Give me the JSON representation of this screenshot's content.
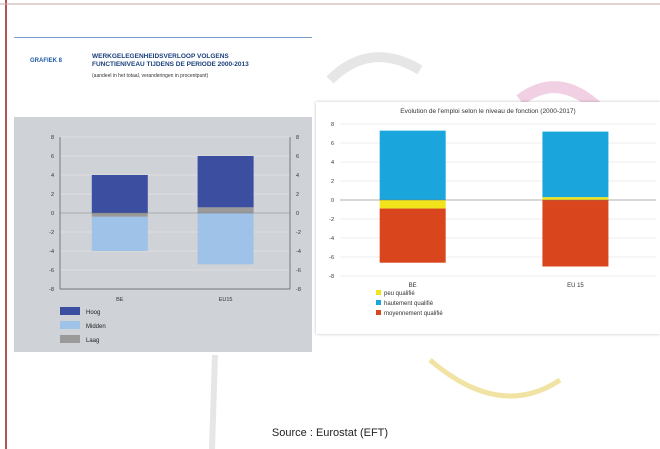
{
  "colors": {
    "hoog": "#3b4ea0",
    "midden": "#9fc3e8",
    "laag": "#9a9a9a",
    "peu": "#f2e41c",
    "haut": "#1aa6dd",
    "moyen": "#d9451d"
  },
  "left_header": {
    "label": "GRAFIEK 8",
    "title_line1": "WERKGELEGENHEIDSVERLOOP VOLGENS",
    "title_line2": "FUNCTIENIVEAU TIJDENS DE PERIODE 2000-2013",
    "subtitle": "(aandeel in het totaal, veranderingen in procentpunt)"
  },
  "source": "Source : Eurostat (EFT)",
  "chart_data": [
    {
      "type": "bar",
      "stacked": true,
      "title": "",
      "categories": [
        "BE",
        "EU15"
      ],
      "series": [
        {
          "name": "Hoog",
          "values": [
            4.0,
            5.4
          ]
        },
        {
          "name": "Midden",
          "values": [
            -3.6,
            -5.4
          ]
        },
        {
          "name": "Laag",
          "values": [
            -0.4,
            0.6
          ]
        }
      ],
      "ylim": [
        -8,
        8
      ],
      "yticks": [
        "8",
        "6",
        "4",
        "2",
        "0",
        "-2",
        "-4",
        "-6",
        "-8"
      ],
      "grid": true,
      "legend": [
        "Hoog",
        "Midden",
        "Laag"
      ],
      "legend_position": "bottom-left"
    },
    {
      "type": "bar",
      "stacked": true,
      "title": "Evolution de l'emploi selon le niveau de fonction (2000-2017)",
      "categories": [
        "BE",
        "EU 15"
      ],
      "series": [
        {
          "name": "peu qualifié",
          "values": [
            -0.9,
            0.3
          ]
        },
        {
          "name": "hautement qualifié",
          "values": [
            7.3,
            6.9
          ]
        },
        {
          "name": "moyennement qualifié",
          "values": [
            -5.7,
            -7.0
          ]
        }
      ],
      "ylim": [
        -8,
        8
      ],
      "yticks": [
        "8",
        "6",
        "4",
        "2",
        "0",
        "-2",
        "-4",
        "-6",
        "-8"
      ],
      "grid": true,
      "legend": [
        "peu qualifié",
        "hautement qualifié",
        "moyennement qualifié"
      ],
      "legend_position": "bottom-left"
    }
  ]
}
